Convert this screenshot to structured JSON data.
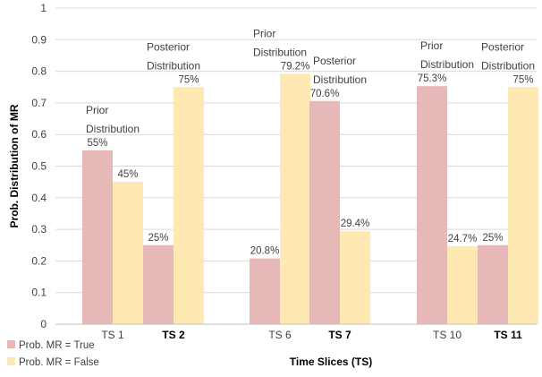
{
  "chart_data": {
    "type": "bar",
    "xlabel": "Time Slices (TS)",
    "ylabel": "Prob. Distribution of MR",
    "ylim": [
      0,
      1
    ],
    "yticks": [
      "0",
      "0.1",
      "0.2",
      "0.3",
      "0.4",
      "0.5",
      "0.6",
      "0.7",
      "0.8",
      "0.9",
      "1"
    ],
    "grid": true,
    "legend_position": "bottom-left",
    "categories": [
      {
        "label": "TS 1",
        "bold": false
      },
      {
        "label": "TS 2",
        "bold": true
      },
      {
        "label": "TS 6",
        "bold": false
      },
      {
        "label": "TS 7",
        "bold": true
      },
      {
        "label": "TS 10",
        "bold": false
      },
      {
        "label": "TS 11",
        "bold": true
      }
    ],
    "series": [
      {
        "name": "Prob. MR = True",
        "color": "#e6b9b8",
        "values": [
          0.55,
          0.25,
          0.208,
          0.706,
          0.753,
          0.25
        ],
        "labels": [
          "55%",
          "25%",
          "20.8%",
          "70.6%",
          "75.3%",
          "25%"
        ]
      },
      {
        "name": "Prob. MR = False",
        "color": "#fde9b1",
        "values": [
          0.45,
          0.75,
          0.792,
          0.294,
          0.247,
          0.75
        ],
        "labels": [
          "45%",
          "75%",
          "79.2%",
          "29.4%",
          "24.7%",
          "75%"
        ]
      }
    ],
    "annotations": [
      {
        "lines": [
          "Prior",
          "Distribution"
        ],
        "category": 0
      },
      {
        "lines": [
          "Posterior",
          "Distribution"
        ],
        "category": 1
      },
      {
        "lines": [
          "Prior",
          "Distribution"
        ],
        "category": 2
      },
      {
        "lines": [
          "Posterior",
          "Distribution"
        ],
        "category": 3
      },
      {
        "lines": [
          "Prior",
          "Distribution"
        ],
        "category": 4
      },
      {
        "lines": [
          "Posterior",
          "Distribution"
        ],
        "category": 5
      }
    ]
  }
}
